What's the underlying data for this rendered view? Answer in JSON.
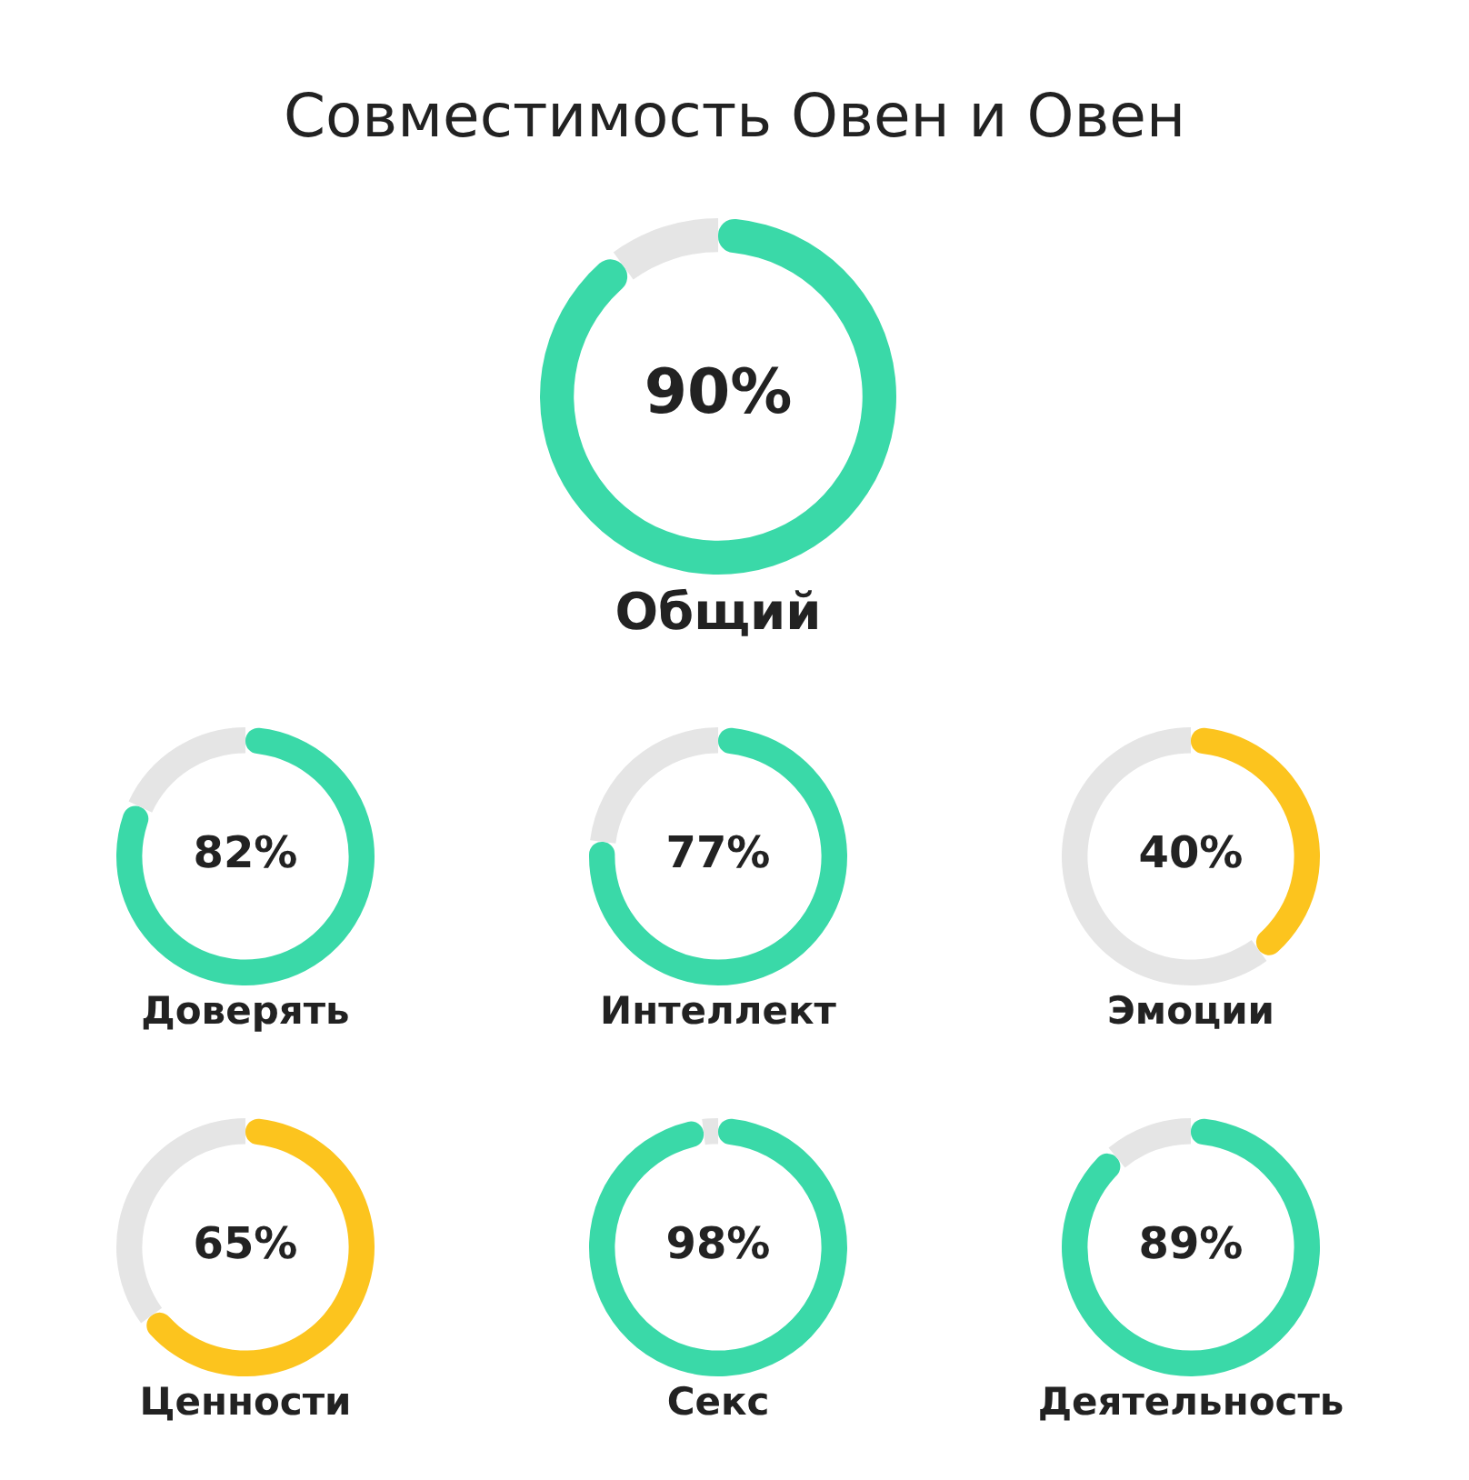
{
  "chart_data": [
    {
      "type": "donut",
      "title": "Совместимость Овен и Овен",
      "xlabel": "Общий",
      "categories": [
        null,
        null
      ],
      "values": [
        90,
        10
      ],
      "colors": [
        "#3ad9a8",
        "#e5e5e5"
      ],
      "value_labels": [
        "90%",
        null
      ]
    },
    {
      "type": "donut",
      "xlabel": "Доверять",
      "categories": [
        null,
        null
      ],
      "values": [
        82,
        18
      ],
      "colors": [
        "#3ad9a8",
        "#e5e5e5"
      ],
      "value_labels": [
        "82%",
        null
      ]
    },
    {
      "type": "donut",
      "xlabel": "Интеллект",
      "categories": [
        null,
        null
      ],
      "values": [
        77,
        23
      ],
      "colors": [
        "#3ad9a8",
        "#e5e5e5"
      ],
      "value_labels": [
        "77%",
        null
      ]
    },
    {
      "type": "donut",
      "xlabel": "Эмоции",
      "categories": [
        null,
        null
      ],
      "values": [
        40,
        60
      ],
      "colors": [
        "#fcc41e",
        "#e5e5e5"
      ],
      "value_labels": [
        "40%",
        null
      ]
    },
    {
      "type": "donut",
      "xlabel": "Ценности",
      "categories": [
        null,
        null
      ],
      "values": [
        65,
        35
      ],
      "colors": [
        "#fcc41e",
        "#e5e5e5"
      ],
      "value_labels": [
        "65%",
        null
      ]
    },
    {
      "type": "donut",
      "xlabel": "Секс",
      "categories": [
        null,
        null
      ],
      "values": [
        98,
        2
      ],
      "colors": [
        "#3ad9a8",
        "#e5e5e5"
      ],
      "value_labels": [
        "98%",
        null
      ]
    },
    {
      "type": "donut",
      "xlabel": "Деятельность",
      "categories": [
        null,
        null
      ],
      "values": [
        89,
        11
      ],
      "colors": [
        "#3ad9a8",
        "#e5e5e5"
      ],
      "value_labels": [
        "89%",
        null
      ]
    }
  ]
}
